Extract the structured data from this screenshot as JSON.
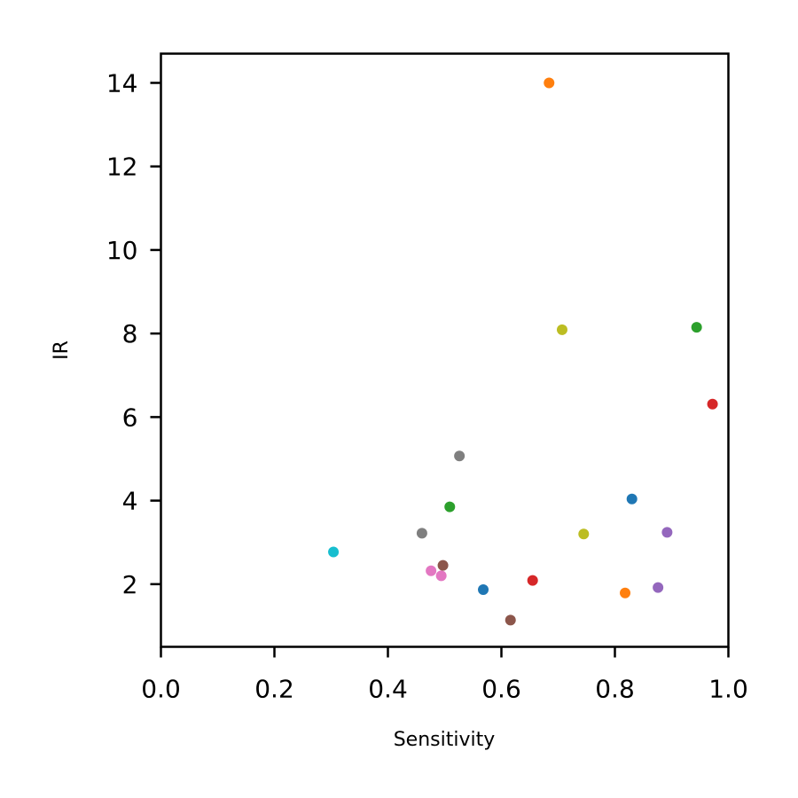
{
  "chart_data": {
    "type": "scatter",
    "title": "",
    "xlabel": "Sensitivity",
    "ylabel": "IR",
    "xlim": [
      0.0,
      1.0
    ],
    "ylim": [
      0.5,
      14.7
    ],
    "x_ticks": [
      "0.0",
      "0.2",
      "0.4",
      "0.6",
      "0.8",
      "1.0"
    ],
    "x_tick_values": [
      0.0,
      0.2,
      0.4,
      0.6,
      0.8,
      1.0
    ],
    "y_ticks": [
      "2",
      "4",
      "6",
      "8",
      "10",
      "12",
      "14"
    ],
    "y_tick_values": [
      2,
      4,
      6,
      8,
      10,
      12,
      14
    ],
    "grid": false,
    "legend": "none",
    "points": [
      {
        "x": 0.568,
        "y": 1.87,
        "color": "#1f77b4"
      },
      {
        "x": 0.83,
        "y": 4.04,
        "color": "#1f77b4"
      },
      {
        "x": 0.684,
        "y": 14.0,
        "color": "#ff7f0e"
      },
      {
        "x": 0.818,
        "y": 1.79,
        "color": "#ff7f0e"
      },
      {
        "x": 0.509,
        "y": 3.85,
        "color": "#2ca02c"
      },
      {
        "x": 0.944,
        "y": 8.15,
        "color": "#2ca02c"
      },
      {
        "x": 0.655,
        "y": 2.09,
        "color": "#d62728"
      },
      {
        "x": 0.972,
        "y": 6.31,
        "color": "#d62728"
      },
      {
        "x": 0.876,
        "y": 1.92,
        "color": "#9467bd"
      },
      {
        "x": 0.892,
        "y": 3.24,
        "color": "#9467bd"
      },
      {
        "x": 0.497,
        "y": 2.45,
        "color": "#8c564b"
      },
      {
        "x": 0.616,
        "y": 1.14,
        "color": "#8c564b"
      },
      {
        "x": 0.476,
        "y": 2.32,
        "color": "#e377c2"
      },
      {
        "x": 0.494,
        "y": 2.2,
        "color": "#e377c2"
      },
      {
        "x": 0.46,
        "y": 3.22,
        "color": "#7f7f7f"
      },
      {
        "x": 0.526,
        "y": 5.07,
        "color": "#7f7f7f"
      },
      {
        "x": 0.707,
        "y": 8.09,
        "color": "#bcbd22"
      },
      {
        "x": 0.745,
        "y": 3.2,
        "color": "#bcbd22"
      },
      {
        "x": 0.304,
        "y": 2.77,
        "color": "#17becf"
      }
    ]
  }
}
